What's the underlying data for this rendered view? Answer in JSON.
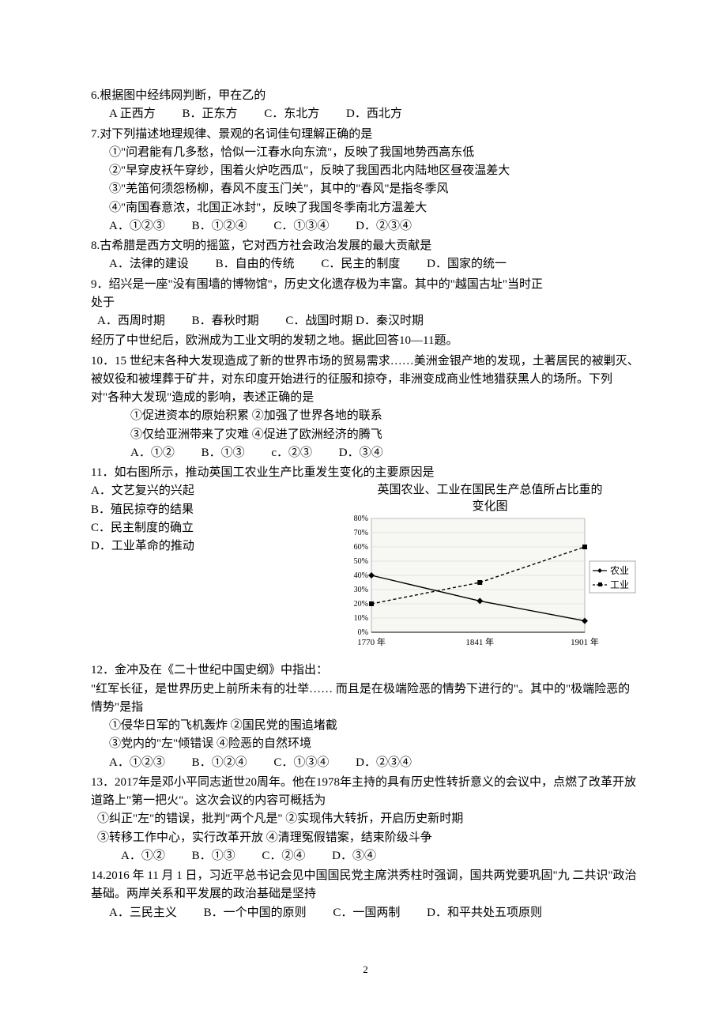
{
  "q6": {
    "stem": "6.根据图中经纬网判断，甲在乙的",
    "A": "A 正西方",
    "B": "B．正东方",
    "C": "C．东北方",
    "D": "D．西北方"
  },
  "q7": {
    "stem": "7.对下列描述地理规律、景观的名词佳句理解正确的是",
    "i1": "①\"问君能有几多愁，恰似一江春水向东流\"，反映了我国地势西高东低",
    "i2": "②\"早穿皮袄午穿纱，围着火炉吃西瓜\"，反映了我国西北内陆地区昼夜温差大",
    "i3": "③\"羌笛何须怨杨柳，春风不度玉门关\"，其中的\"春风\"是指冬季风",
    "i4": "④\"南国春意浓，北国正冰封\"，反映了我国冬季南北方温差大",
    "A": "A．①②③",
    "B": "B．①②④",
    "C": "C．①③④",
    "D": "D．②③④"
  },
  "q8": {
    "stem": "8.古希腊是西方文明的摇篮，它对西方社会政治发展的最大贡献是",
    "A": "A．法律的建设",
    "B": "B．自由的传统",
    "C": "C．民主的制度",
    "D": "D．国家的统一"
  },
  "q9": {
    "stem1": "9．绍兴是一座\"没有围墙的博物馆\"，历史文化遗存极为丰富。其中的\"越国古址\"当时正",
    "stem2": "处于",
    "A": "A．西周时期",
    "B": "B．春秋时期",
    "C": "C．战国时期 D．秦汉时期"
  },
  "ctx10": "经历了中世纪后，欧洲成为工业文明的发轫之地。据此回答10—11题。",
  "q10": {
    "stem": "10．15 世纪末各种大发现造成了新的世界市场的贸易需求……美洲金银产地的发现，土著居民的被剿灭、被奴役和被埋葬于矿井，对东印度开始进行的征服和掠夺，非洲变成商业性地猎获黑人的场所。下列对\"各种大发现\"造成的影响，表述正确的是",
    "i12": "①促进资本的原始积累     ②加强了世界各地的联系",
    "i34": "③仅给亚洲带来了灾难     ④促进了欧洲经济的腾飞",
    "A": "A．①②",
    "B": "B．①③",
    "C": "c．②③",
    "D": "D．③④"
  },
  "q11": {
    "stem": "11．如右图所示，推动英国工农业生产比重发生变化的主要原因是",
    "A": "A．文艺复兴的兴起",
    "B": "B．殖民掠夺的结果",
    "C": "C．民主制度的确立",
    "D": "D．工业革命的推动",
    "chart": {
      "title1": "英国农业、工业在国民生产总值所占比重的",
      "title2": "变化图",
      "y_ticks": [
        "80%",
        "70%",
        "60%",
        "50%",
        "40%",
        "30%",
        "20%",
        "10%",
        "0%"
      ],
      "x_labels": [
        "1770 年",
        "1841 年",
        "1901 年"
      ],
      "x_positions": [
        60,
        182,
        300
      ],
      "series": [
        {
          "name": "农业",
          "marker": "diamond",
          "values": [
            40,
            22,
            8
          ],
          "color": "#000000"
        },
        {
          "name": "工业",
          "marker": "square",
          "values": [
            20,
            35,
            60
          ],
          "color": "#000000"
        }
      ],
      "y_max": 80,
      "plot_bg": "#f7f7f4",
      "grid_color": "#d0d0cc",
      "tick_font": 10,
      "legend_font": 12
    }
  },
  "q12": {
    "stem1": "12．金冲及在《二十世纪中国史纲》中指出：",
    "stem2": "\"红军长征，是世界历史上前所未有的壮举…… 而且是在极端险恶的情势下进行的\"。其中的\"极端险恶的情势\"是指",
    "i12": "①侵华日军的飞机轰炸     ②国民党的围追堵截",
    "i34": "③党内的\"左\"倾错误     ④险恶的自然环境",
    "A": "A．①②③",
    "B": "B．①②④",
    "C": "C．①③④",
    "D": "D．②③④"
  },
  "q13": {
    "stem": "13．2017年是邓小平同志逝世20周年。他在1978年主持的具有历史性转折意义的会议中，点燃了改革开放道路上\"第一把火\"。这次会议的内容可概括为",
    "i1": "①纠正\"左\"的错误，批判\"两个凡是\"    ②实现伟大转折，开启历史新时期",
    "i2": "③转移工作中心，实行改革开放          ④清理冤假错案，结束阶级斗争",
    "A": "A．①②",
    "B": "B．①③",
    "C": "C．②④",
    "D": "D．③④"
  },
  "q14": {
    "stem": "14.2016 年 11 月 1 日，习近平总书记会见中国国民党主席洪秀柱时强调，国共两党要巩固\"九 二共识\"政治基础。两岸关系和平发展的政治基础是坚持",
    "A": "A．三民主义",
    "B": "B．一个中国的原则",
    "C": "C．一国两制",
    "D": "D．和平共处五项原则"
  },
  "page_number": "2"
}
